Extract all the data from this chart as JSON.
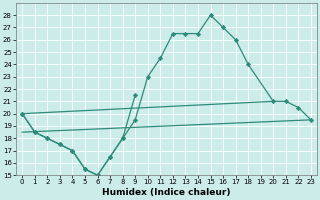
{
  "xlabel": "Humidex (Indice chaleur)",
  "background_color": "#ccecea",
  "grid_color": "#ffffff",
  "line_color": "#2e8b7a",
  "xlim": [
    -0.5,
    23.5
  ],
  "ylim": [
    15,
    29
  ],
  "yticks": [
    15,
    16,
    17,
    18,
    19,
    20,
    21,
    22,
    23,
    24,
    25,
    26,
    27,
    28
  ],
  "xticks": [
    0,
    1,
    2,
    3,
    4,
    5,
    6,
    7,
    8,
    9,
    10,
    11,
    12,
    13,
    14,
    15,
    16,
    17,
    18,
    19,
    20,
    21,
    22,
    23
  ],
  "line1_x": [
    0,
    1,
    2,
    3,
    4,
    5,
    6,
    7,
    8,
    9,
    10,
    11,
    12,
    13,
    14,
    15,
    16,
    17,
    18,
    20,
    21,
    22,
    23
  ],
  "line1_y": [
    20.0,
    18.5,
    18.0,
    17.5,
    17.0,
    15.5,
    15.0,
    16.5,
    18.0,
    19.5,
    23.0,
    24.5,
    26.5,
    26.5,
    26.5,
    28.0,
    27.0,
    26.0,
    24.0,
    21.0,
    21.0,
    20.5,
    19.5
  ],
  "line2_x": [
    0,
    1,
    2,
    3,
    4,
    5,
    6,
    7,
    8,
    9
  ],
  "line2_y": [
    20.0,
    18.5,
    18.0,
    17.5,
    17.0,
    15.5,
    15.0,
    16.5,
    18.0,
    21.5
  ],
  "line3_x": [
    0,
    20
  ],
  "line3_y": [
    20.0,
    21.0
  ],
  "line4_x": [
    0,
    23
  ],
  "line4_y": [
    18.5,
    19.5
  ]
}
